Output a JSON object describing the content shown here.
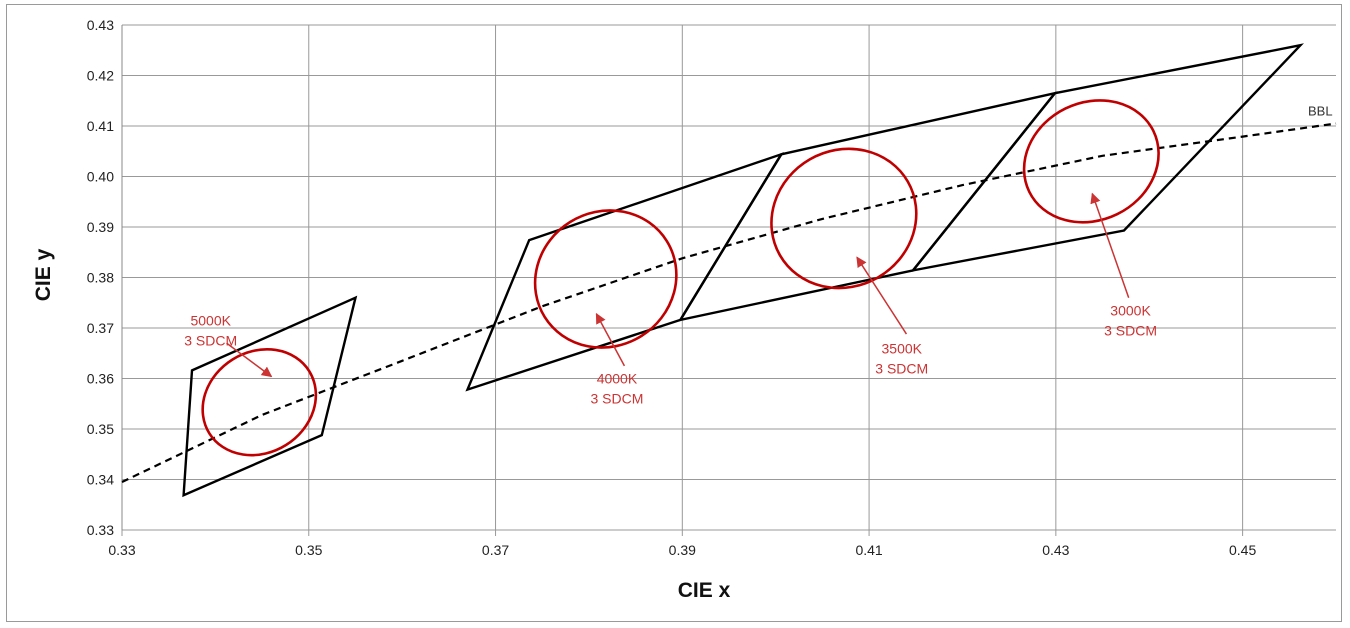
{
  "chart_data": {
    "type": "scatter",
    "xlabel": "CIE x",
    "ylabel": "CIE y",
    "xlim": [
      0.33,
      0.46
    ],
    "ylim": [
      0.33,
      0.43
    ],
    "x_ticks": [
      "0.33",
      "0.35",
      "0.37",
      "0.39",
      "0.41",
      "0.43",
      "0.45"
    ],
    "y_ticks": [
      "0.33",
      "0.34",
      "0.35",
      "0.36",
      "0.37",
      "0.38",
      "0.39",
      "0.40",
      "0.41",
      "0.42",
      "0.43"
    ],
    "grid": true,
    "colors": {
      "quad": "#000000",
      "ellipse": "#c00000",
      "annotation": "#cc3333",
      "grid": "#999999"
    },
    "bbl": {
      "label": "BBL",
      "points": [
        [
          0.33,
          0.3395
        ],
        [
          0.345,
          0.3528
        ],
        [
          0.36,
          0.3635
        ],
        [
          0.375,
          0.3743
        ],
        [
          0.39,
          0.3838
        ],
        [
          0.405,
          0.3916
        ],
        [
          0.42,
          0.3983
        ],
        [
          0.435,
          0.4041
        ],
        [
          0.45,
          0.4079
        ],
        [
          0.46,
          0.4105
        ]
      ]
    },
    "quadrangles": [
      {
        "id": "5000K",
        "points": [
          [
            0.3375,
            0.3616
          ],
          [
            0.355,
            0.376
          ],
          [
            0.3514,
            0.3488
          ],
          [
            0.3366,
            0.3369
          ]
        ]
      },
      {
        "id": "4000K",
        "points": [
          [
            0.3736,
            0.3874
          ],
          [
            0.4006,
            0.4044
          ],
          [
            0.3898,
            0.3716
          ],
          [
            0.367,
            0.3578
          ]
        ]
      },
      {
        "id": "3500K",
        "points": [
          [
            0.4006,
            0.4044
          ],
          [
            0.4299,
            0.4165
          ],
          [
            0.4147,
            0.3814
          ],
          [
            0.3898,
            0.3716
          ]
        ]
      },
      {
        "id": "3000K",
        "points": [
          [
            0.4299,
            0.4165
          ],
          [
            0.4562,
            0.426
          ],
          [
            0.4373,
            0.3893
          ],
          [
            0.4147,
            0.3814
          ]
        ]
      }
    ],
    "ellipses": [
      {
        "cx": 0.3447,
        "cy": 0.3553,
        "rx": 0.0063,
        "ry": 0.0054,
        "angle_deg": -32
      },
      {
        "cx": 0.3818,
        "cy": 0.3797,
        "rx": 0.0077,
        "ry": 0.0072,
        "angle_deg": -32
      },
      {
        "cx": 0.4073,
        "cy": 0.3917,
        "rx": 0.0079,
        "ry": 0.0073,
        "angle_deg": -30
      },
      {
        "cx": 0.4338,
        "cy": 0.403,
        "rx": 0.0074,
        "ry": 0.0063,
        "angle_deg": -26
      }
    ],
    "annotations": [
      {
        "id": "5000K",
        "lines": [
          "5000K",
          "3 SDCM"
        ],
        "text_at": [
          0.3395,
          0.3705
        ],
        "arrow_from": [
          0.3412,
          0.367
        ],
        "arrow_to": [
          0.346,
          0.3604
        ]
      },
      {
        "id": "4000K",
        "lines": [
          "4000K",
          "3 SDCM"
        ],
        "text_at": [
          0.383,
          0.359
        ],
        "arrow_from": [
          0.3838,
          0.3625
        ],
        "arrow_to": [
          0.3808,
          0.3728
        ]
      },
      {
        "id": "3500K",
        "lines": [
          "3500K",
          "3 SDCM"
        ],
        "text_at": [
          0.4135,
          0.365
        ],
        "arrow_from": [
          0.414,
          0.3688
        ],
        "arrow_to": [
          0.4087,
          0.384
        ]
      },
      {
        "id": "3000K",
        "lines": [
          "3000K",
          "3 SDCM"
        ],
        "text_at": [
          0.438,
          0.3725
        ],
        "arrow_from": [
          0.4378,
          0.376
        ],
        "arrow_to": [
          0.4339,
          0.3966
        ]
      }
    ]
  }
}
